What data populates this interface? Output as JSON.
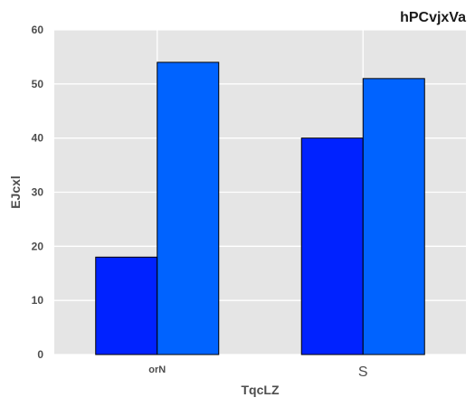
{
  "chart_data": {
    "type": "bar",
    "title": "hPCvjxVa",
    "xlabel": "TqcLZ",
    "ylabel": "EJcxl",
    "categories": [
      "orN",
      "S"
    ],
    "series": [
      {
        "values": [
          18,
          40
        ],
        "color": "#0022ff"
      },
      {
        "values": [
          54,
          51
        ],
        "color": "#0063ff"
      }
    ],
    "ylim": [
      0,
      60
    ],
    "yticks": [
      0,
      10,
      20,
      30,
      40,
      50,
      60
    ],
    "grid": true,
    "background": "#e5e5e5",
    "grid_color": "#ffffff"
  }
}
